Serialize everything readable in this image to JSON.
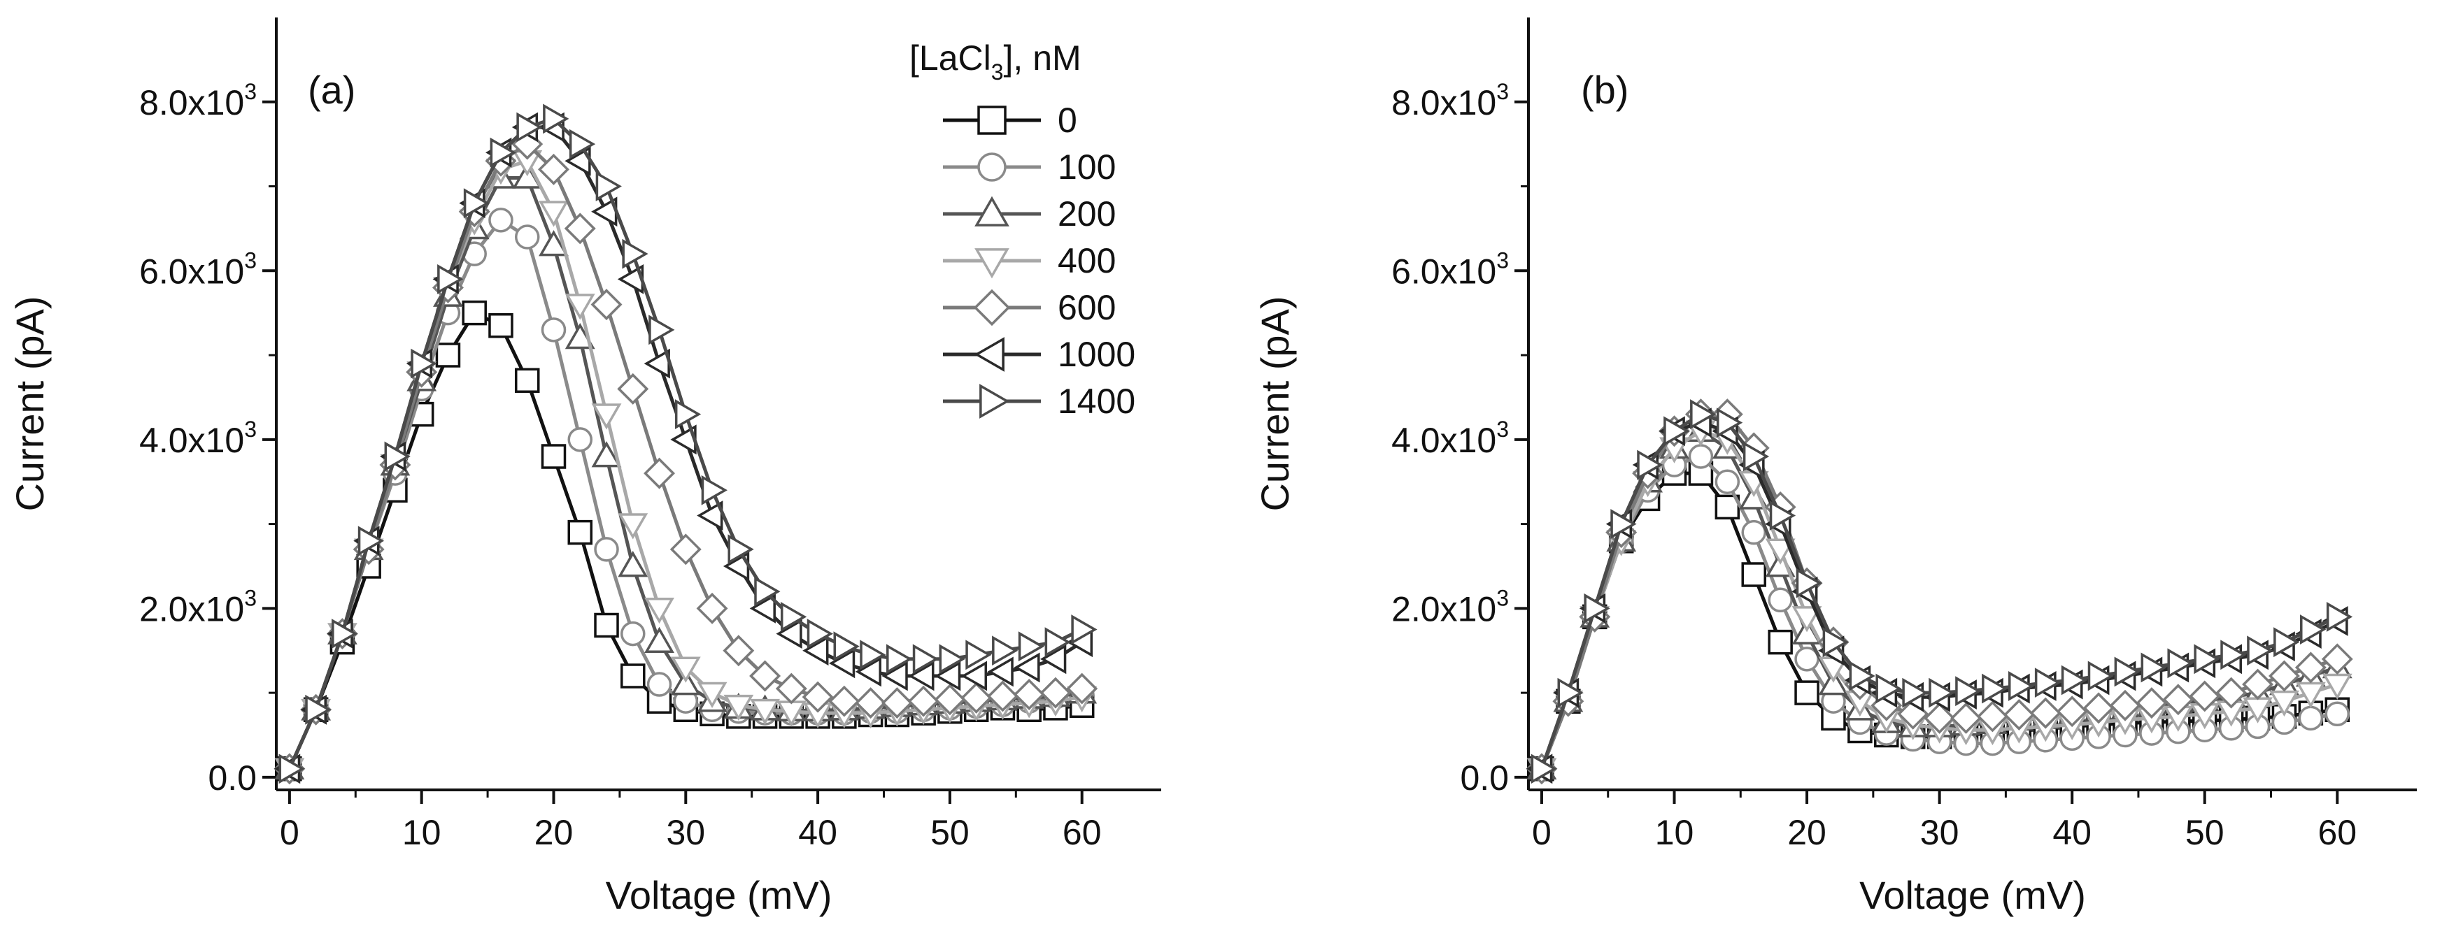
{
  "legend": {
    "title_prefix": "[LaCl",
    "title_subscript": "3",
    "title_suffix": "], nM",
    "items": [
      {
        "label": "0",
        "marker": "square"
      },
      {
        "label": "100",
        "marker": "circle"
      },
      {
        "label": "200",
        "marker": "triangle-up"
      },
      {
        "label": "400",
        "marker": "triangle-down"
      },
      {
        "label": "600",
        "marker": "diamond"
      },
      {
        "label": "1000",
        "marker": "triangle-left"
      },
      {
        "label": "1400",
        "marker": "triangle-right"
      }
    ]
  },
  "colors": {
    "0": "#111111",
    "100": "#8a8a8a",
    "200": "#555555",
    "400": "#a8a8a8",
    "600": "#7a7a7a",
    "1000": "#2a2a2a",
    "1400": "#4a4a4a",
    "marker_fill": "#ffffff",
    "axis": "#111111"
  },
  "chart_data": [
    {
      "type": "line",
      "panel": "(a)",
      "xlabel": "Voltage (mV)",
      "ylabel": "Current (pA)",
      "xlim": [
        -1,
        66
      ],
      "ylim": [
        -150,
        9000
      ],
      "x_ticks": [
        0,
        10,
        20,
        30,
        40,
        50,
        60
      ],
      "x_tick_labels": [
        "0",
        "10",
        "20",
        "30",
        "40",
        "50",
        "60"
      ],
      "y_ticks": [
        0,
        2000,
        4000,
        6000,
        8000
      ],
      "y_tick_labels": [
        {
          "mantissa": "0.0",
          "exponent": ""
        },
        {
          "mantissa": "2.0x10",
          "exponent": "3"
        },
        {
          "mantissa": "4.0x10",
          "exponent": "3"
        },
        {
          "mantissa": "6.0x10",
          "exponent": "3"
        },
        {
          "mantissa": "8.0x10",
          "exponent": "3"
        }
      ],
      "x": [
        0,
        2,
        4,
        6,
        8,
        10,
        12,
        14,
        16,
        18,
        20,
        22,
        24,
        26,
        28,
        30,
        32,
        34,
        36,
        38,
        40,
        42,
        44,
        46,
        48,
        50,
        52,
        54,
        56,
        58,
        60
      ],
      "series": [
        {
          "name": "0",
          "values": [
            100,
            800,
            1600,
            2500,
            3400,
            4300,
            5000,
            5500,
            5350,
            4700,
            3800,
            2900,
            1800,
            1200,
            900,
            800,
            750,
            720,
            720,
            720,
            720,
            720,
            740,
            740,
            760,
            780,
            800,
            820,
            800,
            820,
            850
          ]
        },
        {
          "name": "100",
          "values": [
            100,
            800,
            1700,
            2700,
            3600,
            4600,
            5500,
            6200,
            6600,
            6400,
            5300,
            4000,
            2700,
            1700,
            1100,
            900,
            800,
            780,
            760,
            760,
            760,
            760,
            780,
            780,
            800,
            820,
            840,
            860,
            900,
            950,
            1000
          ]
        },
        {
          "name": "200",
          "values": [
            100,
            800,
            1700,
            2700,
            3700,
            4700,
            5700,
            6500,
            7100,
            7100,
            6300,
            5200,
            3800,
            2500,
            1600,
            1100,
            900,
            820,
            800,
            790,
            790,
            800,
            820,
            840,
            860,
            880,
            900,
            920,
            940,
            960,
            1000
          ]
        },
        {
          "name": "400",
          "values": [
            100,
            800,
            1700,
            2700,
            3700,
            4800,
            5800,
            6600,
            7200,
            7300,
            6700,
            5600,
            4300,
            3000,
            2000,
            1300,
            1000,
            850,
            800,
            780,
            760,
            760,
            760,
            780,
            800,
            820,
            840,
            860,
            880,
            900,
            950
          ]
        },
        {
          "name": "600",
          "values": [
            100,
            800,
            1700,
            2700,
            3700,
            4800,
            5800,
            6700,
            7300,
            7500,
            7200,
            6500,
            5600,
            4600,
            3600,
            2700,
            2000,
            1500,
            1200,
            1050,
            950,
            900,
            880,
            880,
            900,
            920,
            940,
            960,
            980,
            1000,
            1050
          ]
        },
        {
          "name": "1000",
          "values": [
            100,
            800,
            1700,
            2800,
            3800,
            4900,
            5900,
            6800,
            7400,
            7700,
            7700,
            7300,
            6700,
            5900,
            4900,
            4000,
            3100,
            2500,
            2000,
            1700,
            1500,
            1350,
            1250,
            1200,
            1200,
            1200,
            1200,
            1250,
            1300,
            1400,
            1600
          ]
        },
        {
          "name": "1400",
          "values": [
            100,
            800,
            1700,
            2800,
            3800,
            4900,
            5900,
            6800,
            7400,
            7700,
            7800,
            7500,
            7000,
            6200,
            5300,
            4300,
            3400,
            2700,
            2200,
            1900,
            1700,
            1550,
            1450,
            1400,
            1400,
            1400,
            1450,
            1500,
            1550,
            1600,
            1750
          ]
        }
      ]
    },
    {
      "type": "line",
      "panel": "(b)",
      "xlabel": "Voltage (mV)",
      "ylabel": "Current (pA)",
      "xlim": [
        -1,
        66
      ],
      "ylim": [
        -150,
        9000
      ],
      "x_ticks": [
        0,
        10,
        20,
        30,
        40,
        50,
        60
      ],
      "x_tick_labels": [
        "0",
        "10",
        "20",
        "30",
        "40",
        "50",
        "60"
      ],
      "y_ticks": [
        0,
        2000,
        4000,
        6000,
        8000
      ],
      "y_tick_labels": [
        {
          "mantissa": "0.0",
          "exponent": ""
        },
        {
          "mantissa": "2.0x10",
          "exponent": "3"
        },
        {
          "mantissa": "4.0x10",
          "exponent": "3"
        },
        {
          "mantissa": "6.0x10",
          "exponent": "3"
        },
        {
          "mantissa": "8.0x10",
          "exponent": "3"
        }
      ],
      "x": [
        0,
        2,
        4,
        6,
        8,
        10,
        12,
        14,
        16,
        18,
        20,
        22,
        24,
        26,
        28,
        30,
        32,
        34,
        36,
        38,
        40,
        42,
        44,
        46,
        48,
        50,
        52,
        54,
        56,
        58,
        60
      ],
      "series": [
        {
          "name": "0",
          "values": [
            100,
            900,
            1900,
            2800,
            3300,
            3600,
            3600,
            3200,
            2400,
            1600,
            1000,
            700,
            550,
            500,
            480,
            480,
            500,
            520,
            550,
            570,
            600,
            620,
            640,
            650,
            660,
            670,
            680,
            700,
            720,
            760,
            800
          ]
        },
        {
          "name": "100",
          "values": [
            100,
            900,
            1900,
            2800,
            3400,
            3700,
            3800,
            3500,
            2900,
            2100,
            1400,
            900,
            650,
            520,
            450,
            420,
            400,
            400,
            420,
            440,
            460,
            480,
            500,
            520,
            540,
            560,
            580,
            600,
            650,
            700,
            750
          ]
        },
        {
          "name": "200",
          "values": [
            100,
            900,
            1900,
            2800,
            3500,
            3900,
            4100,
            3900,
            3300,
            2500,
            1700,
            1100,
            800,
            650,
            600,
            600,
            620,
            640,
            680,
            700,
            740,
            780,
            800,
            840,
            880,
            900,
            950,
            1000,
            1100,
            1200,
            1300
          ]
        },
        {
          "name": "400",
          "values": [
            100,
            900,
            1900,
            2800,
            3500,
            3900,
            4100,
            4000,
            3500,
            2700,
            1900,
            1300,
            900,
            700,
            620,
            580,
            560,
            560,
            580,
            600,
            620,
            650,
            680,
            700,
            720,
            750,
            780,
            820,
            900,
            1000,
            1100
          ]
        },
        {
          "name": "600",
          "values": [
            100,
            900,
            1900,
            2900,
            3600,
            4100,
            4300,
            4300,
            3900,
            3200,
            2300,
            1600,
            1100,
            850,
            750,
            700,
            700,
            720,
            740,
            760,
            780,
            820,
            850,
            880,
            920,
            960,
            1000,
            1100,
            1200,
            1300,
            1400
          ]
        },
        {
          "name": "1000",
          "values": [
            100,
            1000,
            2000,
            3000,
            3700,
            4100,
            4200,
            4100,
            3700,
            3000,
            2200,
            1500,
            1150,
            1000,
            950,
            950,
            980,
            1000,
            1050,
            1080,
            1100,
            1150,
            1200,
            1250,
            1300,
            1350,
            1400,
            1450,
            1550,
            1700,
            1850
          ]
        },
        {
          "name": "1400",
          "values": [
            100,
            1000,
            2000,
            3000,
            3700,
            4100,
            4300,
            4200,
            3800,
            3100,
            2300,
            1600,
            1200,
            1050,
            1000,
            1000,
            1020,
            1050,
            1080,
            1120,
            1150,
            1200,
            1250,
            1300,
            1350,
            1400,
            1450,
            1500,
            1600,
            1750,
            1900
          ]
        }
      ]
    }
  ]
}
